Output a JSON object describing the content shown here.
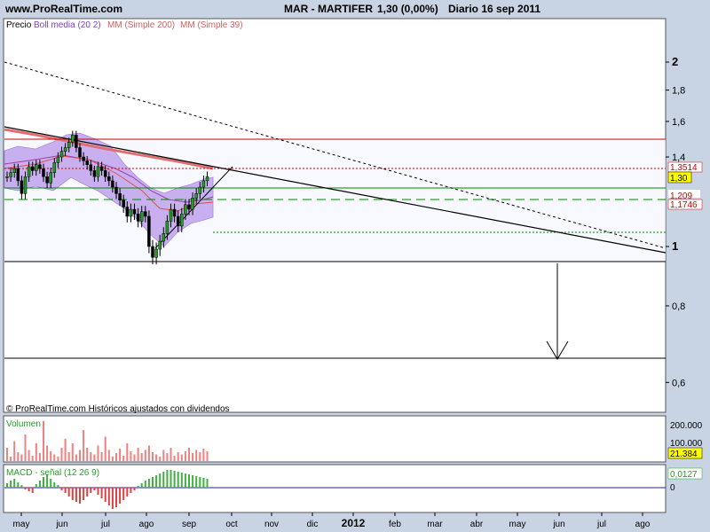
{
  "header": {
    "site": "www.ProRealTime.com",
    "title": "MAR - MARTIFER",
    "price": "1,30 (0,00%)",
    "date": "Diario  16 sep 2011"
  },
  "legend": {
    "price": "Precio",
    "boll": "Boll media (20 2)",
    "mm200": "MM (Simple 200)",
    "mm39": "MM (Simple 39)"
  },
  "footer_note": "© ProRealTime.com  Históricos ajustados con dividendos",
  "volume": {
    "label": "Volumen",
    "ticks": [
      "200.000",
      "100.000"
    ],
    "badge": "21.384"
  },
  "macd": {
    "label": "MACD - señal (12 26 9)",
    "tick": "0",
    "badge": "0,0127"
  },
  "price_badges": [
    "1,3514",
    "1,30",
    "1,209",
    "1,1746"
  ],
  "colors": {
    "background": "#c8d4e4",
    "panel": "#ffffff",
    "bollinger_band": "#c8b0f0",
    "mm200": "#e07070",
    "mm39": "#a040a0",
    "resistance": "#cc0000",
    "support": "#008800",
    "volume_bars": "#f08080",
    "macd_hist": "#40b040",
    "macd_down": "#e04040"
  },
  "chart_data": [
    {
      "type": "candlestick",
      "title": "MAR - MARTIFER",
      "ylim": [
        0.55,
        2.3
      ],
      "y_scale": "log",
      "y_ticks": [
        "2",
        "1,8",
        "1,6",
        "1,4",
        "1,30",
        "1",
        "0,8",
        "0,6"
      ],
      "x_ticks": [
        "may",
        "jun",
        "jul",
        "ago",
        "sep",
        "oct",
        "nov",
        "dic",
        "2012",
        "feb",
        "mar",
        "abr",
        "may",
        "jun",
        "jul",
        "ago"
      ],
      "close_series": [
        1.3,
        1.32,
        1.34,
        1.28,
        1.22,
        1.3,
        1.35,
        1.33,
        1.36,
        1.34,
        1.3,
        1.27,
        1.32,
        1.37,
        1.4,
        1.43,
        1.45,
        1.48,
        1.52,
        1.45,
        1.4,
        1.38,
        1.36,
        1.33,
        1.3,
        1.35,
        1.33,
        1.3,
        1.28,
        1.25,
        1.22,
        1.19,
        1.16,
        1.12,
        1.15,
        1.13,
        1.1,
        1.14,
        1.12,
        1.0,
        0.96,
        0.99,
        1.02,
        1.05,
        1.1,
        1.15,
        1.12,
        1.08,
        1.13,
        1.17,
        1.15,
        1.2,
        1.22,
        1.25,
        1.28,
        1.3
      ],
      "horizontal_levels": {
        "resistance_red": 1.5,
        "red_dotted": 1.3514,
        "green_solid": 1.25,
        "green_dashed": 1.1746,
        "green_dotted": 1.06,
        "black_support": 0.95,
        "black_target": 0.68
      },
      "annotations": [
        "target arrow down to 0,68"
      ]
    },
    {
      "type": "bar",
      "title": "Volumen",
      "ylim": [
        0,
        250000
      ],
      "y_ticks": [
        "200.000",
        "100.000"
      ],
      "last": 21384
    },
    {
      "type": "bar",
      "title": "MACD - señal (12 26 9)",
      "y_ticks": [
        "0"
      ],
      "last": 0.0127
    }
  ]
}
